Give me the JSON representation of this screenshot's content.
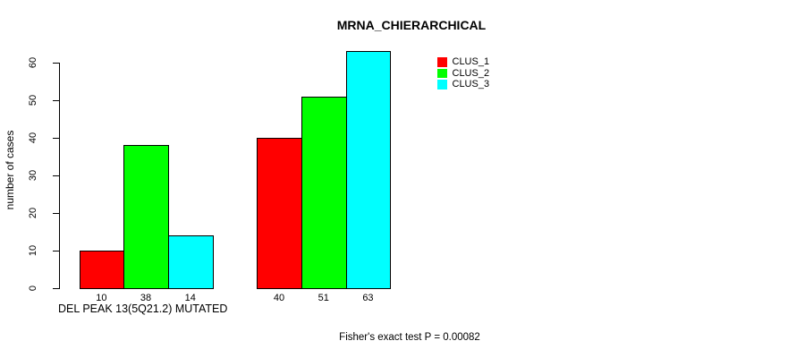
{
  "chart_data": {
    "type": "bar",
    "title": "MRNA_CHIERARCHICAL",
    "ylabel": "number of cases",
    "xlabel": "DEL PEAK 13(5Q21.2) MUTATED",
    "ylim": [
      0,
      60
    ],
    "yticks": [
      0,
      10,
      20,
      30,
      40,
      50,
      60
    ],
    "grid": false,
    "categories": [
      "DEL PEAK 13(5Q21.2) MUTATED",
      ""
    ],
    "series": [
      {
        "name": "CLUS_1",
        "color": "#ff0000",
        "values": [
          10,
          40
        ]
      },
      {
        "name": "CLUS_2",
        "color": "#00ff00",
        "values": [
          38,
          51
        ]
      },
      {
        "name": "CLUS_3",
        "color": "#00ffff",
        "values": [
          14,
          63
        ]
      }
    ],
    "bar_value_labels": [
      [
        10,
        38,
        14
      ],
      [
        40,
        51,
        63
      ]
    ],
    "legend_position": "top-right",
    "legend": [
      "CLUS_1",
      "CLUS_2",
      "CLUS_3"
    ],
    "annotation": "Fisher's exact test P = 0.00082"
  }
}
